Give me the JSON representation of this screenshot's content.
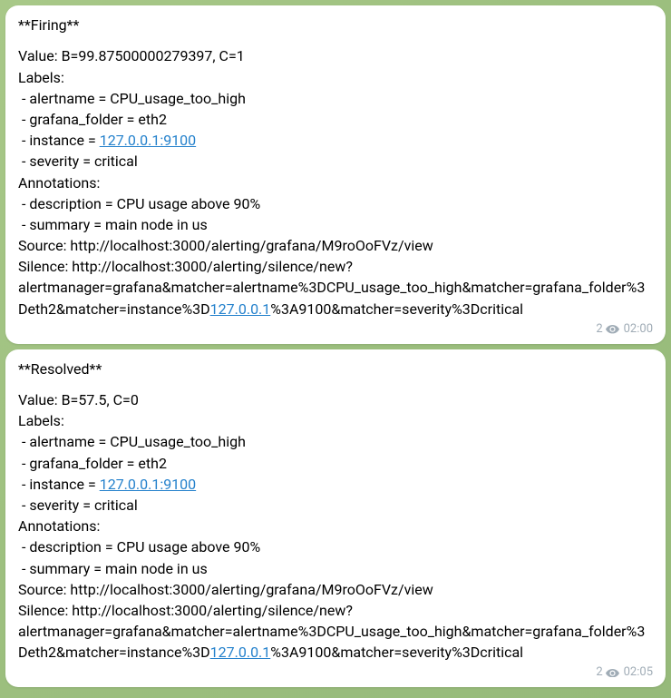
{
  "colors": {
    "bubble_bg": "#ffffff",
    "text": "#000000",
    "link": "#2481cc",
    "meta": "#a0acb6",
    "background_gradient": [
      "#a8c888",
      "#96ba7a"
    ]
  },
  "messages": [
    {
      "id": "firing",
      "title": "**Firing**",
      "value_line": "Value: B=99.87500000279397, C=1",
      "labels_header": "Labels:",
      "labels": [
        {
          "key": "alertname",
          "value": "CPU_usage_too_high",
          "is_link": false
        },
        {
          "key": "grafana_folder",
          "value": "eth2",
          "is_link": false
        },
        {
          "key": "instance",
          "value": "127.0.0.1:9100",
          "is_link": true
        },
        {
          "key": "severity",
          "value": "critical",
          "is_link": false
        }
      ],
      "annotations_header": "Annotations:",
      "annotations": [
        {
          "key": "description",
          "value": "CPU usage above 90%"
        },
        {
          "key": "summary",
          "value": "main node in us"
        }
      ],
      "source_prefix": "Source: ",
      "source_url": "http://localhost:3000/alerting/grafana/M9roOoFVz/view",
      "silence_prefix": "Silence: ",
      "silence_part1": "http://localhost:3000/alerting/silence/new?alertmanager=grafana&matcher=alertname%3DCPU_usage_too_high&matcher=grafana_folder%3Deth2&matcher=instance%3D",
      "silence_link": "127.0.0.1",
      "silence_part2": "%3A9100&matcher=severity%3Dcritical",
      "views": "2",
      "timestamp": "02:00"
    },
    {
      "id": "resolved",
      "title": "**Resolved**",
      "value_line": "Value: B=57.5, C=0",
      "labels_header": "Labels:",
      "labels": [
        {
          "key": "alertname",
          "value": "CPU_usage_too_high",
          "is_link": false
        },
        {
          "key": "grafana_folder",
          "value": "eth2",
          "is_link": false
        },
        {
          "key": "instance",
          "value": "127.0.0.1:9100",
          "is_link": true
        },
        {
          "key": "severity",
          "value": "critical",
          "is_link": false
        }
      ],
      "annotations_header": "Annotations:",
      "annotations": [
        {
          "key": "description",
          "value": "CPU usage above 90%"
        },
        {
          "key": "summary",
          "value": "main node in us"
        }
      ],
      "source_prefix": "Source: ",
      "source_url": "http://localhost:3000/alerting/grafana/M9roOoFVz/view",
      "silence_prefix": "Silence: ",
      "silence_part1": "http://localhost:3000/alerting/silence/new?alertmanager=grafana&matcher=alertname%3DCPU_usage_too_high&matcher=grafana_folder%3Deth2&matcher=instance%3D",
      "silence_link": "127.0.0.1",
      "silence_part2": "%3A9100&matcher=severity%3Dcritical",
      "views": "2",
      "timestamp": "02:05"
    }
  ]
}
